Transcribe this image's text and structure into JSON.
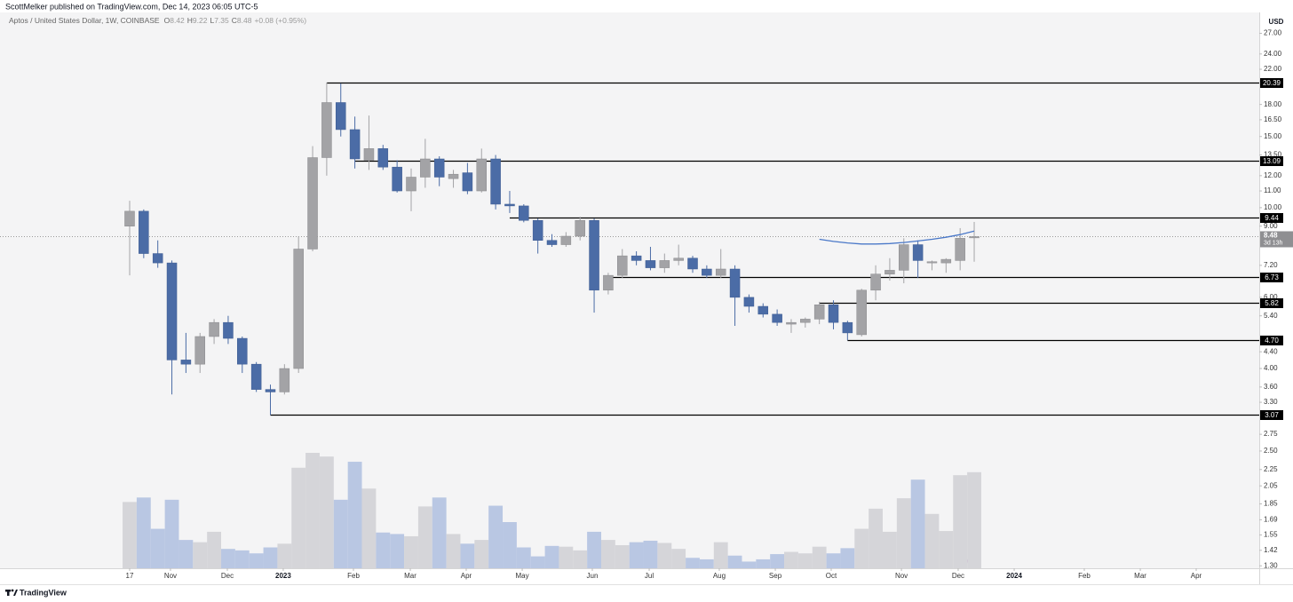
{
  "chart_data": {
    "type": "candlestick",
    "publisher": "ScottMelker published on TradingView.com, Dec 14, 2023 06:05 UTC-5",
    "symbol": "Aptos / United States Dollar, 1W, COINBASE",
    "ohlc": [
      {
        "label": "O",
        "value": 8.42
      },
      {
        "label": "H",
        "value": 9.22
      },
      {
        "label": "L",
        "value": 7.35
      },
      {
        "label": "C",
        "value": 8.48
      }
    ],
    "change": "+0.08 (+0.95%)",
    "currency": "USD",
    "brand": "TradingView",
    "log_scale": true,
    "up_color": "#a3a3a6",
    "down_color": "#4b6ca6",
    "volume_up_color": "#d5d5d9",
    "volume_down_color": "#b9c7e3",
    "x": [
      0,
      1,
      2,
      3,
      4,
      5,
      6,
      7,
      8,
      9,
      10,
      11,
      12,
      13,
      14,
      15,
      16,
      17,
      18,
      19,
      20,
      21,
      22,
      23,
      24,
      25,
      26,
      27,
      28,
      29,
      30,
      31,
      32,
      33,
      34,
      35,
      36,
      37,
      38,
      39,
      40,
      41,
      42,
      43,
      44,
      45,
      46,
      47,
      48,
      49,
      50,
      51,
      52,
      53,
      54,
      55,
      56,
      57,
      58,
      59,
      60
    ],
    "open": [
      9.0,
      9.8,
      7.7,
      7.3,
      4.2,
      4.1,
      4.8,
      5.2,
      4.75,
      4.1,
      3.55,
      3.5,
      4.0,
      7.9,
      13.3,
      18.2,
      15.6,
      13.1,
      14.0,
      12.6,
      11.0,
      11.9,
      13.2,
      11.8,
      12.2,
      11.0,
      13.2,
      10.2,
      10.1,
      9.3,
      8.3,
      8.1,
      8.5,
      9.3,
      6.25,
      6.8,
      7.6,
      7.4,
      7.1,
      7.4,
      7.5,
      7.05,
      6.8,
      7.05,
      6.0,
      5.7,
      5.45,
      5.15,
      5.2,
      5.3,
      5.75,
      5.2,
      4.85,
      6.25,
      6.85,
      7.0,
      8.1,
      7.3,
      7.3,
      7.4,
      8.42
    ],
    "high": [
      10.4,
      9.9,
      8.3,
      7.4,
      4.9,
      4.9,
      5.3,
      5.4,
      4.8,
      4.15,
      3.65,
      4.1,
      8.5,
      14.2,
      20.39,
      20.3,
      16.8,
      16.9,
      14.3,
      13.1,
      12.5,
      14.8,
      13.4,
      12.4,
      12.9,
      14.0,
      13.5,
      11.0,
      10.2,
      9.4,
      8.6,
      8.7,
      9.5,
      9.4,
      6.9,
      7.9,
      7.8,
      8.0,
      7.7,
      8.1,
      7.6,
      7.2,
      7.9,
      7.2,
      6.1,
      5.8,
      5.6,
      5.3,
      5.35,
      5.85,
      5.9,
      5.25,
      6.3,
      7.2,
      7.5,
      8.4,
      8.3,
      7.4,
      7.5,
      8.9,
      9.22
    ],
    "low": [
      6.8,
      7.5,
      7.1,
      3.45,
      3.9,
      3.9,
      4.6,
      4.6,
      3.9,
      3.5,
      3.07,
      3.45,
      3.9,
      7.8,
      12.0,
      15.0,
      12.5,
      12.4,
      12.4,
      10.9,
      9.8,
      11.2,
      11.3,
      11.2,
      10.8,
      10.9,
      9.9,
      9.7,
      9.2,
      7.7,
      8.0,
      8.0,
      8.3,
      5.5,
      6.1,
      6.7,
      7.2,
      7.0,
      6.9,
      7.2,
      6.9,
      6.7,
      6.7,
      5.1,
      5.5,
      5.35,
      5.1,
      4.9,
      5.05,
      5.15,
      5.0,
      4.7,
      4.8,
      5.9,
      6.6,
      6.5,
      6.7,
      7.0,
      6.9,
      7.0,
      7.35
    ],
    "close": [
      9.8,
      7.7,
      7.3,
      4.2,
      4.1,
      4.8,
      5.2,
      4.75,
      4.1,
      3.55,
      3.5,
      4.0,
      7.9,
      13.3,
      18.2,
      15.6,
      13.2,
      14.0,
      12.6,
      11.0,
      11.9,
      13.2,
      11.9,
      12.1,
      11.0,
      13.2,
      10.2,
      10.1,
      9.3,
      8.3,
      8.1,
      8.5,
      9.3,
      6.25,
      6.8,
      7.6,
      7.4,
      7.1,
      7.4,
      7.5,
      7.05,
      6.8,
      7.05,
      6.0,
      5.7,
      5.45,
      5.2,
      5.2,
      5.3,
      5.75,
      5.2,
      4.9,
      6.25,
      6.85,
      7.0,
      8.1,
      7.4,
      7.35,
      7.45,
      8.4,
      8.48
    ],
    "volume": [
      89,
      95,
      53,
      92,
      38,
      35,
      49,
      26,
      24,
      20,
      28,
      33,
      135,
      155,
      150,
      92,
      143,
      107,
      48,
      46,
      43,
      83,
      95,
      46,
      33,
      38,
      84,
      62,
      28,
      16,
      30,
      29,
      24,
      49,
      38,
      31,
      35,
      37,
      34,
      26,
      14,
      12,
      35,
      17,
      9,
      12,
      19,
      22,
      20,
      29,
      20,
      27,
      53,
      80,
      49,
      94,
      119,
      73,
      50,
      125,
      129
    ],
    "levels": [
      {
        "value": 20.39,
        "start": 14
      },
      {
        "value": 13.09,
        "start": 16
      },
      {
        "value": 9.44,
        "start": 27
      },
      {
        "value": 6.73,
        "start": 34
      },
      {
        "value": 5.82,
        "start": 49
      },
      {
        "value": 4.7,
        "label": "4.70",
        "start": 51
      },
      {
        "value": 3.07,
        "start": 10
      }
    ],
    "last_price": {
      "value": 8.48,
      "countdown": "3d 13h"
    },
    "curve": {
      "color": "#4a78c8",
      "x": [
        49,
        50,
        51,
        52,
        53,
        54,
        55,
        56,
        57,
        58,
        59,
        60
      ],
      "values": [
        8.35,
        8.25,
        8.18,
        8.13,
        8.13,
        8.15,
        8.2,
        8.27,
        8.35,
        8.45,
        8.58,
        8.75
      ]
    },
    "xlim": [
      -9.21,
      80.25
    ],
    "xticks": [
      {
        "value": 0,
        "label": "17"
      },
      {
        "value": 2.9,
        "label": "Nov"
      },
      {
        "value": 6.94,
        "label": "Dec"
      },
      {
        "value": 10.91,
        "label": "2023"
      },
      {
        "value": 15.9,
        "label": "Feb"
      },
      {
        "value": 19.94,
        "label": "Mar"
      },
      {
        "value": 23.91,
        "label": "Apr"
      },
      {
        "value": 27.89,
        "label": "May"
      },
      {
        "value": 32.87,
        "label": "Jun"
      },
      {
        "value": 36.91,
        "label": "Jul"
      },
      {
        "value": 41.89,
        "label": "Aug"
      },
      {
        "value": 45.87,
        "label": "Sep"
      },
      {
        "value": 49.84,
        "label": "Oct"
      },
      {
        "value": 54.83,
        "label": "Nov"
      },
      {
        "value": 58.86,
        "label": "Dec"
      },
      {
        "value": 62.84,
        "label": "2024"
      },
      {
        "value": 67.82,
        "label": "Feb"
      },
      {
        "value": 71.8,
        "label": "Mar"
      },
      {
        "value": 75.77,
        "label": "Apr"
      }
    ],
    "ylim": [
      1.25,
      29.8
    ],
    "yticks": [
      {
        "value": 27,
        "label": "27.00"
      },
      {
        "value": 24,
        "label": "24.00"
      },
      {
        "value": 22,
        "label": "22.00"
      },
      {
        "value": 18,
        "label": "18.00"
      },
      {
        "value": 16.5,
        "label": "16.50"
      },
      {
        "value": 15,
        "label": "15.00"
      },
      {
        "value": 13.5,
        "label": "13.50"
      },
      {
        "value": 12,
        "label": "12.00"
      },
      {
        "value": 11,
        "label": "11.00"
      },
      {
        "value": 10,
        "label": "10.00"
      },
      {
        "value": 9,
        "label": "9.00"
      },
      {
        "value": 7.2,
        "label": "7.20"
      },
      {
        "value": 6,
        "label": "6.00"
      },
      {
        "value": 5.4,
        "label": "5.40"
      },
      {
        "value": 4.4,
        "label": "4.40"
      },
      {
        "value": 4,
        "label": "4.00"
      },
      {
        "value": 3.6,
        "label": "3.60"
      },
      {
        "value": 3.3,
        "label": "3.30"
      },
      {
        "value": 2.75,
        "label": "2.75"
      },
      {
        "value": 2.5,
        "label": "2.50"
      },
      {
        "value": 2.25,
        "label": "2.25"
      },
      {
        "value": 2.05,
        "label": "2.05"
      },
      {
        "value": 1.85,
        "label": "1.85"
      },
      {
        "value": 1.69,
        "label": "1.69"
      },
      {
        "value": 1.55,
        "label": "1.55"
      },
      {
        "value": 1.42,
        "label": "1.42"
      },
      {
        "value": 1.3,
        "label": "1.30"
      }
    ]
  }
}
